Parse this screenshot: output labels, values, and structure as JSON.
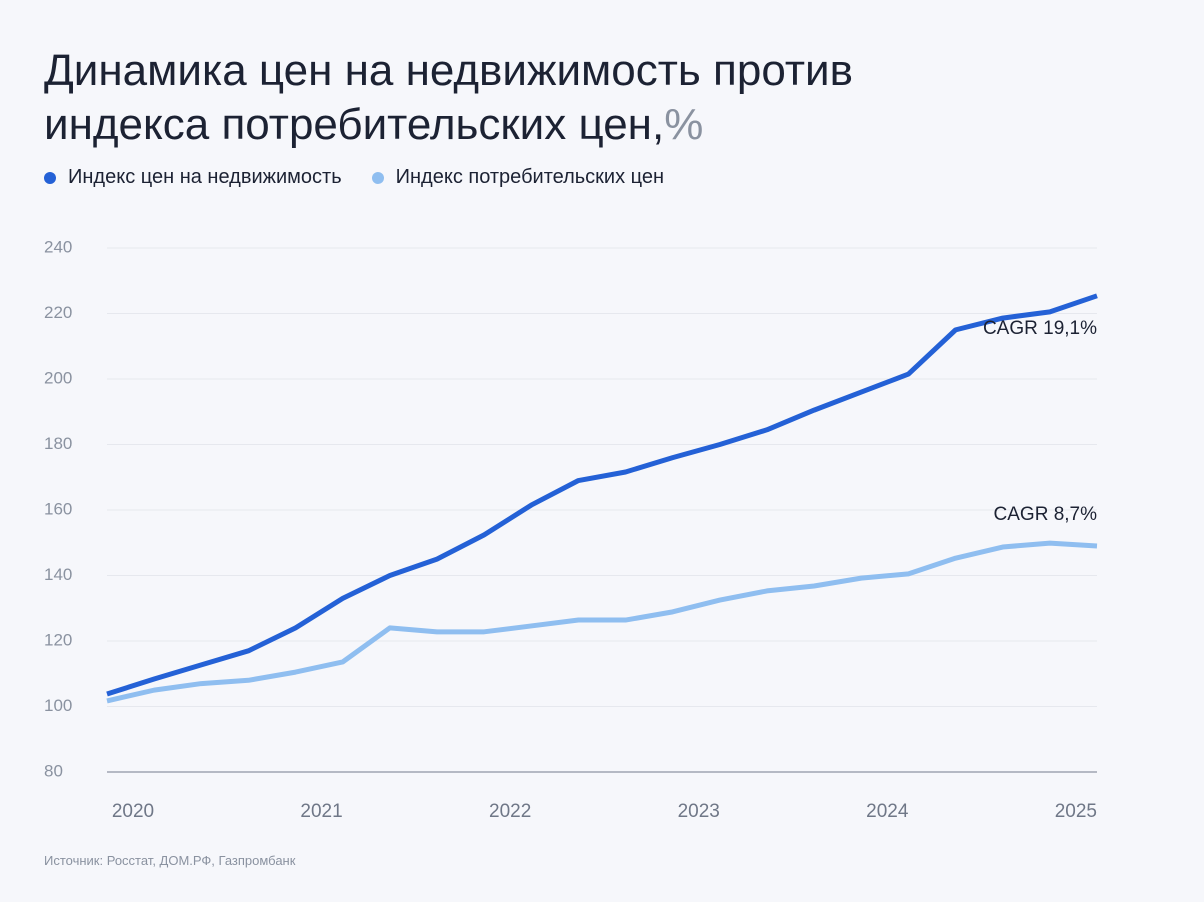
{
  "chart_data": {
    "type": "line",
    "title": [
      "Динамика цен на недвижимость против",
      "индекса потребительских цен,"
    ],
    "title_unit": "%",
    "categories": [
      "2020",
      null,
      null,
      null,
      "2021",
      null,
      null,
      null,
      "2022",
      null,
      null,
      null,
      "2023",
      null,
      null,
      null,
      "2024",
      null,
      null,
      null,
      "2025",
      null
    ],
    "series": [
      {
        "name": "Индекс цен на недвижимость",
        "color": "#2461d6",
        "values": [
          103.8,
          108.4,
          112.7,
          117,
          124,
          133,
          140,
          145,
          152.4,
          161.5,
          169,
          171.6,
          176,
          180,
          184.5,
          190.5,
          196,
          201.5,
          215,
          218.6,
          220.5,
          225.4
        ]
      },
      {
        "name": "Индекс потребительских цен",
        "color": "#8fbef0",
        "values": [
          101.7,
          105,
          107,
          108,
          110.5,
          113.6,
          124,
          122.8,
          122.8,
          124.6,
          126.4,
          126.4,
          128.9,
          132.5,
          135.3,
          136.8,
          139.2,
          140.5,
          145.3,
          148.7,
          149.9,
          149
        ]
      }
    ],
    "annotations": [
      "CAGR 19,1%",
      "CAGR 8,7%"
    ],
    "ylim": [
      80,
      240
    ],
    "yticks": [
      80,
      100,
      120,
      140,
      160,
      180,
      200,
      220,
      240
    ],
    "grid": true,
    "source": "Источник: Росстат, ДОМ.РФ, Газпромбанк"
  }
}
